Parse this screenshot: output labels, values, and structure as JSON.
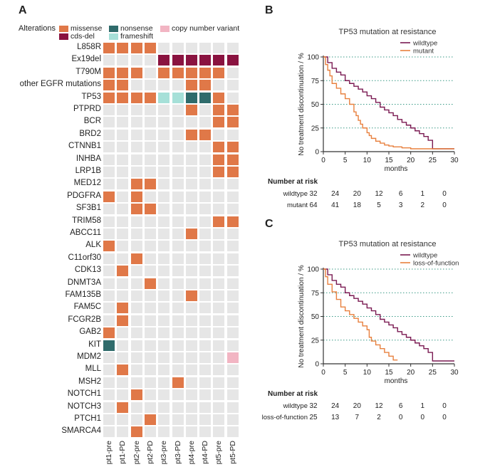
{
  "colors": {
    "missense": "#e07848",
    "cds_del": "#8a1340",
    "nonsense": "#2f6b6b",
    "frameshift": "#a6e0d8",
    "copy_number_variant": "#f2b5c3",
    "empty": "#e6e6e6",
    "wildtype_line": "#7a1a52",
    "mutant_line": "#e8803e",
    "grid": "#3a9a86"
  },
  "panelA": {
    "letter": "A",
    "legend_title": "Alterations",
    "legend": {
      "missense": "missense",
      "cds_del": "cds-del",
      "nonsense": "nonsense",
      "frameshift": "frameshift",
      "cnv": "copy number variant"
    },
    "samples": [
      "pt1-pre",
      "pt1-PD",
      "pt2-pre",
      "pt2-PD",
      "pt3-pre",
      "pt3-PD",
      "pt4-pre",
      "pt4-PD",
      "pt5-pre",
      "pt5-PD"
    ],
    "genes": [
      "L858R",
      "Ex19del",
      "T790M",
      "other EGFR mutations",
      "TP53",
      "PTPRD",
      "BCR",
      "BRD2",
      "CTNNB1",
      "INHBA",
      "LRP1B",
      "MED12",
      "PDGFRA",
      "SF3B1",
      "TRIM58",
      "ABCC11",
      "ALK",
      "C11orf30",
      "CDK13",
      "DNMT3A",
      "FAM135B",
      "FAM5C",
      "FCGR2B",
      "GAB2",
      "KIT",
      "MDM2",
      "MLL",
      "MSH2",
      "NOTCH1",
      "NOTCH3",
      "PTCH1",
      "SMARCA4"
    ],
    "matrix": [
      [
        "M",
        "M",
        "M",
        "M",
        "",
        "",
        "",
        "",
        "",
        ""
      ],
      [
        "",
        "",
        "",
        "",
        "D",
        "D",
        "D",
        "D",
        "D",
        "D"
      ],
      [
        "M",
        "M",
        "M",
        "",
        "M",
        "M",
        "M",
        "M",
        "M",
        ""
      ],
      [
        "M",
        "M",
        "",
        "",
        "",
        "",
        "M",
        "M",
        "",
        ""
      ],
      [
        "M",
        "M",
        "M",
        "M",
        "F",
        "F",
        "N",
        "N",
        "M",
        ""
      ],
      [
        "",
        "",
        "",
        "",
        "",
        "",
        "M",
        "",
        "M",
        "M"
      ],
      [
        "",
        "",
        "",
        "",
        "",
        "",
        "",
        "",
        "M",
        "M"
      ],
      [
        "",
        "",
        "",
        "",
        "",
        "",
        "M",
        "M",
        "",
        ""
      ],
      [
        "",
        "",
        "",
        "",
        "",
        "",
        "",
        "",
        "M",
        "M"
      ],
      [
        "",
        "",
        "",
        "",
        "",
        "",
        "",
        "",
        "M",
        "M"
      ],
      [
        "",
        "",
        "",
        "",
        "",
        "",
        "",
        "",
        "M",
        "M"
      ],
      [
        "",
        "",
        "M",
        "M",
        "",
        "",
        "",
        "",
        "",
        ""
      ],
      [
        "M",
        "",
        "M",
        "",
        "",
        "",
        "",
        "",
        "",
        ""
      ],
      [
        "",
        "",
        "M",
        "M",
        "",
        "",
        "",
        "",
        "",
        ""
      ],
      [
        "",
        "",
        "",
        "",
        "",
        "",
        "",
        "",
        "M",
        "M"
      ],
      [
        "",
        "",
        "",
        "",
        "",
        "",
        "M",
        "",
        "",
        ""
      ],
      [
        "M",
        "",
        "",
        "",
        "",
        "",
        "",
        "",
        "",
        ""
      ],
      [
        "",
        "",
        "M",
        "",
        "",
        "",
        "",
        "",
        "",
        ""
      ],
      [
        "",
        "M",
        "",
        "",
        "",
        "",
        "",
        "",
        "",
        ""
      ],
      [
        "",
        "",
        "",
        "M",
        "",
        "",
        "",
        "",
        "",
        ""
      ],
      [
        "",
        "",
        "",
        "",
        "",
        "",
        "M",
        "",
        "",
        ""
      ],
      [
        "",
        "M",
        "",
        "",
        "",
        "",
        "",
        "",
        "",
        ""
      ],
      [
        "",
        "M",
        "",
        "",
        "",
        "",
        "",
        "",
        "",
        ""
      ],
      [
        "M",
        "",
        "",
        "",
        "",
        "",
        "",
        "",
        "",
        ""
      ],
      [
        "N",
        "",
        "",
        "",
        "",
        "",
        "",
        "",
        "",
        ""
      ],
      [
        "",
        "",
        "",
        "",
        "",
        "",
        "",
        "",
        "",
        "C"
      ],
      [
        "",
        "M",
        "",
        "",
        "",
        "",
        "",
        "",
        "",
        ""
      ],
      [
        "",
        "",
        "",
        "",
        "",
        "M",
        "",
        "",
        "",
        ""
      ],
      [
        "",
        "",
        "M",
        "",
        "",
        "",
        "",
        "",
        "",
        ""
      ],
      [
        "",
        "M",
        "",
        "",
        "",
        "",
        "",
        "",
        "",
        ""
      ],
      [
        "",
        "",
        "",
        "M",
        "",
        "",
        "",
        "",
        "",
        ""
      ],
      [
        "",
        "",
        "M",
        "",
        "",
        "",
        "",
        "",
        "",
        ""
      ]
    ]
  },
  "chart_data": [
    {
      "type": "line",
      "panel": "B",
      "title": "TP53 mutation at resistance",
      "xlabel": "months",
      "ylabel": "No treatment discontinuation / %",
      "xlim": [
        0,
        30
      ],
      "ylim": [
        0,
        100
      ],
      "xticks": [
        0,
        5,
        10,
        15,
        20,
        25,
        30
      ],
      "yticks": [
        0,
        25,
        50,
        75,
        100
      ],
      "series": [
        {
          "name": "wildtype",
          "colorKey": "wildtype_line",
          "x": [
            0,
            1,
            2,
            3,
            4,
            5,
            6,
            7,
            8,
            9,
            10,
            11,
            12,
            13,
            14,
            15,
            16,
            17,
            18,
            19,
            20,
            21,
            22,
            23,
            24,
            25,
            30
          ],
          "y": [
            100,
            94,
            88,
            84,
            81,
            75,
            72,
            69,
            66,
            63,
            59,
            56,
            52,
            47,
            44,
            41,
            38,
            34,
            31,
            28,
            25,
            22,
            19,
            16,
            12,
            3,
            3
          ]
        },
        {
          "name": "mutant",
          "colorKey": "mutant_line",
          "x": [
            0,
            0.5,
            1,
            1.5,
            2,
            3,
            4,
            5,
            6,
            7,
            7.5,
            8,
            8.5,
            9,
            10,
            10.5,
            11,
            12,
            13,
            14,
            15,
            16,
            18,
            20,
            22,
            24,
            30
          ],
          "y": [
            100,
            92,
            86,
            80,
            72,
            67,
            61,
            56,
            50,
            42,
            38,
            33,
            29,
            25,
            20,
            17,
            14,
            11,
            9,
            7,
            6,
            5,
            4,
            3,
            3,
            3,
            3
          ]
        }
      ],
      "risk_table": {
        "label": "Number at risk",
        "times": [
          0,
          5,
          10,
          15,
          20,
          25,
          30
        ],
        "rows": [
          {
            "name": "wildtype",
            "values": [
              32,
              24,
              20,
              12,
              6,
              1,
              0
            ]
          },
          {
            "name": "mutant",
            "values": [
              64,
              41,
              18,
              5,
              3,
              2,
              0
            ]
          }
        ]
      }
    },
    {
      "type": "line",
      "panel": "C",
      "title": "TP53 mutation at resistance",
      "xlabel": "months",
      "ylabel": "No treatment discontinuation / %",
      "xlim": [
        0,
        30
      ],
      "ylim": [
        0,
        100
      ],
      "xticks": [
        0,
        5,
        10,
        15,
        20,
        25,
        30
      ],
      "yticks": [
        0,
        25,
        50,
        75,
        100
      ],
      "series": [
        {
          "name": "wildtype",
          "colorKey": "wildtype_line",
          "x": [
            0,
            1,
            2,
            3,
            4,
            5,
            6,
            7,
            8,
            9,
            10,
            11,
            12,
            13,
            14,
            15,
            16,
            17,
            18,
            19,
            20,
            21,
            22,
            23,
            24,
            25,
            30
          ],
          "y": [
            100,
            94,
            88,
            84,
            81,
            75,
            72,
            69,
            66,
            63,
            59,
            56,
            52,
            47,
            44,
            41,
            38,
            34,
            31,
            28,
            25,
            22,
            19,
            16,
            12,
            3,
            3
          ]
        },
        {
          "name": "loss-of-function",
          "colorKey": "mutant_line",
          "x": [
            0,
            0.5,
            1,
            2,
            3,
            4,
            5,
            6,
            7,
            8,
            9,
            10,
            10.5,
            11,
            12,
            13,
            14,
            15,
            16,
            17
          ],
          "y": [
            100,
            92,
            84,
            76,
            68,
            60,
            56,
            52,
            48,
            44,
            40,
            36,
            28,
            24,
            20,
            16,
            12,
            8,
            4,
            4
          ]
        }
      ],
      "risk_table": {
        "label": "Number at risk",
        "times": [
          0,
          5,
          10,
          15,
          20,
          25,
          30
        ],
        "rows": [
          {
            "name": "wildtype",
            "values": [
              32,
              24,
              20,
              12,
              6,
              1,
              0
            ]
          },
          {
            "name": "loss-of-function",
            "values": [
              25,
              13,
              7,
              2,
              0,
              0,
              0
            ]
          }
        ]
      }
    }
  ]
}
